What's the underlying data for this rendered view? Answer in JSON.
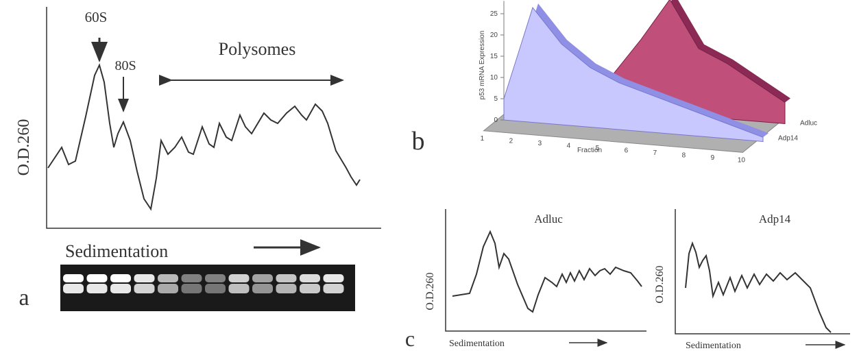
{
  "chart_data": {
    "type": "area3d",
    "ylabel": "p53 mRNA Expression",
    "xlabel": "Fraction",
    "x": [
      1,
      2,
      3,
      4,
      5,
      6,
      7,
      8,
      9,
      10
    ],
    "series": [
      {
        "name": "Adp14",
        "color": "#c8c8ff",
        "values": [
          5,
          27,
          19,
          14,
          11,
          9,
          7,
          5,
          3,
          1
        ]
      },
      {
        "name": "Adluc",
        "color": "#c0507a",
        "values": [
          0,
          0,
          0,
          8,
          17,
          27,
          16,
          13,
          9,
          5
        ]
      }
    ],
    "ylim": [
      0,
      28
    ],
    "yticks": [
      0,
      5,
      10,
      15,
      20,
      25
    ],
    "panel_label": "b"
  },
  "panel_a": {
    "label": "a",
    "peak_60s": "60S",
    "peak_80s": "80S",
    "polysomes": "Polysomes",
    "ylabel": "O.D.260",
    "xlabel": "Sedimentation"
  },
  "panel_c": {
    "label": "c",
    "left": {
      "title": "Adluc",
      "ylabel": "O.D.260",
      "xlabel": "Sedimentation"
    },
    "right": {
      "title": "Adp14",
      "ylabel": "O.D.260",
      "xlabel": "Sedimentation"
    }
  }
}
